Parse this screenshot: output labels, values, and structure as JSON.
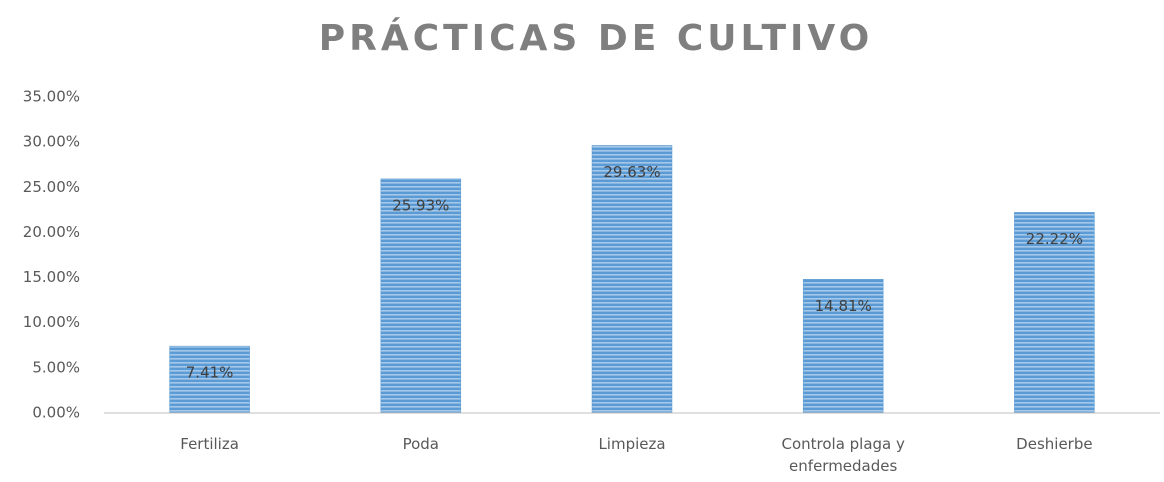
{
  "chart_data": {
    "type": "bar",
    "title": "PRÁCTICAS DE CULTIVO",
    "categories": [
      "Fertiliza",
      "Poda",
      "Limpieza",
      "Controla plaga y enfermedades",
      "Deshierbe"
    ],
    "values": [
      7.41,
      25.93,
      29.63,
      14.81,
      22.22
    ],
    "value_labels": [
      "7.41%",
      "25.93%",
      "29.63%",
      "14.81%",
      "22.22%"
    ],
    "color": "#5b9bd5",
    "ylim": [
      0,
      35
    ],
    "yticks": [
      {
        "value": 0,
        "label": "0.00%"
      },
      {
        "value": 5,
        "label": "5.00%"
      },
      {
        "value": 10,
        "label": "10.00%"
      },
      {
        "value": 15,
        "label": "15.00%"
      },
      {
        "value": 20,
        "label": "20.00%"
      },
      {
        "value": 25,
        "label": "25.00%"
      },
      {
        "value": 30,
        "label": "30.00%"
      },
      {
        "value": 35,
        "label": "35.00%"
      }
    ],
    "grid": false
  }
}
